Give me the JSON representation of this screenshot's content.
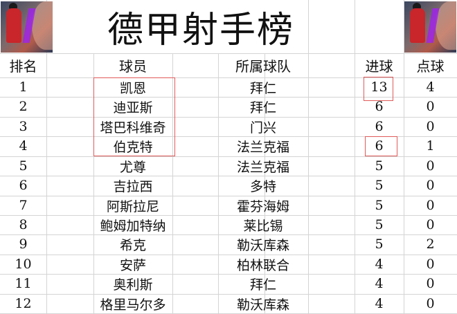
{
  "title": "德甲射手榜",
  "headers": {
    "rank": "排名",
    "player": "球员",
    "team": "所属球队",
    "goals": "进球",
    "penalties": "点球"
  },
  "rows": [
    {
      "rank": "1",
      "player": "凯恩",
      "team": "拜仁",
      "goals": "13",
      "penalties": "4"
    },
    {
      "rank": "2",
      "player": "迪亚斯",
      "team": "拜仁",
      "goals": "6",
      "penalties": "0"
    },
    {
      "rank": "3",
      "player": "塔巴科维奇",
      "team": "门兴",
      "goals": "6",
      "penalties": "0"
    },
    {
      "rank": "4",
      "player": "伯克特",
      "team": "法兰克福",
      "goals": "6",
      "penalties": "1"
    },
    {
      "rank": "5",
      "player": "尤尊",
      "team": "法兰克福",
      "goals": "5",
      "penalties": "0"
    },
    {
      "rank": "6",
      "player": "吉拉西",
      "team": "多特",
      "goals": "5",
      "penalties": "0"
    },
    {
      "rank": "7",
      "player": "阿斯拉尼",
      "team": "霍芬海姆",
      "goals": "5",
      "penalties": "0"
    },
    {
      "rank": "8",
      "player": "鲍姆加特纳",
      "team": "莱比锡",
      "goals": "5",
      "penalties": "0"
    },
    {
      "rank": "9",
      "player": "希克",
      "team": "勒沃库森",
      "goals": "5",
      "penalties": "2"
    },
    {
      "rank": "10",
      "player": "安萨",
      "team": "柏林联合",
      "goals": "4",
      "penalties": "0"
    },
    {
      "rank": "11",
      "player": "奥利斯",
      "team": "拜仁",
      "goals": "4",
      "penalties": "0"
    },
    {
      "rank": "12",
      "player": "格里马尔多",
      "team": "勒沃库森",
      "goals": "4",
      "penalties": "0"
    }
  ],
  "highlight_color": "#e05a5a",
  "icons": {
    "left_image": "anime-basketball-player-image",
    "right_image": "anime-basketball-player-image"
  }
}
